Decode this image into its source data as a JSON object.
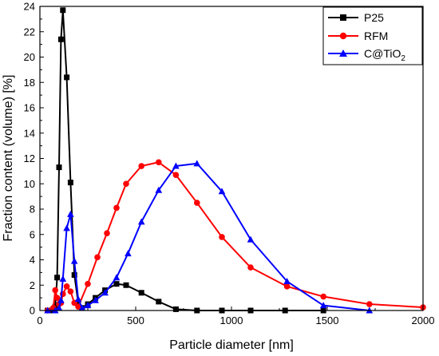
{
  "chart_data": {
    "type": "line",
    "xlabel": "Particle diameter [nm]",
    "ylabel": "Fraction content (volume) [%]",
    "xlim": [
      0,
      2000
    ],
    "ylim": [
      0,
      24
    ],
    "xticks": [
      0,
      500,
      1000,
      1500,
      2000
    ],
    "yticks": [
      0,
      2,
      4,
      6,
      8,
      10,
      12,
      14,
      16,
      18,
      20,
      22,
      24
    ],
    "grid": false,
    "legend_position": "top-right",
    "series": [
      {
        "name": "P25",
        "legend_label": "P25",
        "color": "#000000",
        "marker": "square",
        "x": [
          40,
          60,
          70,
          80,
          90,
          100,
          110,
          120,
          140,
          160,
          180,
          200,
          220,
          250,
          290,
          340,
          400,
          450,
          530,
          620,
          710,
          820,
          950,
          1100,
          1280,
          1480
        ],
        "y": [
          0,
          0,
          0.1,
          0.3,
          2.6,
          11.3,
          21.4,
          23.7,
          18.4,
          10.1,
          2.8,
          0.6,
          0.2,
          0.5,
          1.0,
          1.6,
          2.1,
          2.0,
          1.4,
          0.7,
          0.1,
          0,
          0,
          0,
          0,
          0
        ]
      },
      {
        "name": "RFM",
        "legend_label": "RFM",
        "color": "#ff0000",
        "marker": "circle",
        "x": [
          40,
          70,
          80,
          90,
          100,
          110,
          120,
          140,
          160,
          180,
          200,
          250,
          300,
          350,
          400,
          450,
          530,
          620,
          710,
          820,
          950,
          1100,
          1290,
          1480,
          1720,
          2000
        ],
        "y": [
          0,
          0.2,
          1.6,
          1.0,
          0.5,
          0.6,
          1.3,
          1.9,
          1.5,
          0.6,
          0.3,
          2.1,
          4.2,
          6.1,
          8.1,
          10.0,
          11.4,
          11.7,
          10.7,
          8.5,
          5.8,
          3.4,
          1.9,
          1.1,
          0.5,
          0.25
        ]
      },
      {
        "name": "C@TiO2",
        "legend_label": "C@TiO",
        "legend_subscript": "2",
        "color": "#0000ff",
        "marker": "triangle",
        "x": [
          40,
          80,
          100,
          110,
          120,
          140,
          160,
          180,
          200,
          220,
          250,
          290,
          340,
          400,
          460,
          530,
          620,
          710,
          820,
          950,
          1100,
          1290,
          1480,
          1720
        ],
        "y": [
          0,
          0,
          0.2,
          0.8,
          2.5,
          6.5,
          7.6,
          3.9,
          0.9,
          0.2,
          0.4,
          0.8,
          1.4,
          2.6,
          4.5,
          7.0,
          9.5,
          11.4,
          11.6,
          9.4,
          5.6,
          2.3,
          0.4,
          0
        ]
      }
    ]
  }
}
